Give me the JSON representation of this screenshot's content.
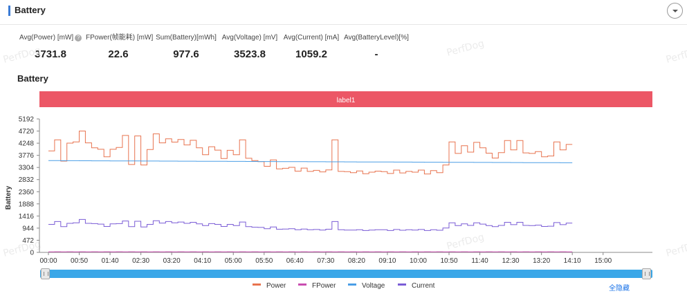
{
  "header": {
    "title": "Battery"
  },
  "stats": [
    {
      "label": "Avg(Power) [mW]",
      "value": "3731.8",
      "has_help": true
    },
    {
      "label": "FPower(帧能耗) [mW]",
      "value": "22.6"
    },
    {
      "label": "Sum(Battery)[mWh]",
      "value": "977.6"
    },
    {
      "label": "Avg(Voltage) [mV]",
      "value": "3523.8"
    },
    {
      "label": "Avg(Current) [mA]",
      "value": "1059.2"
    },
    {
      "label": "Avg(BatteryLevel)[%]",
      "value": "-"
    }
  ],
  "watermark": "PerfDog",
  "chart_section_title": "Battery",
  "hide_all_label": "全隐藏",
  "chart_data": {
    "type": "line",
    "title": "Battery",
    "ylabel": "Battery",
    "label_band": "label1",
    "ylim": [
      0,
      5192
    ],
    "yticks": [
      0,
      472,
      944,
      1416,
      1888,
      2360,
      2832,
      3304,
      3776,
      4248,
      4720,
      5192
    ],
    "xticks": [
      "00:00",
      "00:50",
      "01:40",
      "02:30",
      "03:20",
      "04:10",
      "05:00",
      "05:50",
      "06:40",
      "07:30",
      "08:20",
      "09:10",
      "10:00",
      "10:50",
      "11:40",
      "12:30",
      "13:20",
      "14:10",
      "15:00"
    ],
    "x_range_seconds": [
      0,
      980
    ],
    "step_seconds": 10,
    "colors": {
      "Power": "#e8734f",
      "FPower": "#c94db0",
      "Voltage": "#4a9ee6",
      "Current": "#7a5cd6",
      "label_band": "#ec5766"
    },
    "series": [
      {
        "name": "Power",
        "values": [
          3950,
          4380,
          3550,
          4250,
          4300,
          4720,
          4260,
          4070,
          4010,
          3720,
          4010,
          4080,
          4550,
          3420,
          4530,
          3400,
          4000,
          4610,
          4260,
          4420,
          4290,
          4390,
          4180,
          4360,
          4070,
          3800,
          4110,
          3980,
          3650,
          3970,
          3800,
          4380,
          3660,
          3570,
          3530,
          3350,
          3600,
          3250,
          3270,
          3310,
          3160,
          3280,
          3150,
          3190,
          3130,
          3210,
          4380,
          3150,
          3140,
          3100,
          3170,
          3060,
          3120,
          3160,
          3140,
          3070,
          3200,
          3090,
          3150,
          3120,
          3200,
          3050,
          3180,
          3100,
          3400,
          4300,
          3850,
          4150,
          3900,
          4280,
          4070,
          3860,
          3670,
          3880,
          4350,
          3990,
          4350,
          3870,
          3850,
          3920,
          3720,
          3750,
          4300,
          3990,
          4200
        ]
      },
      {
        "name": "FPower",
        "values": [
          22,
          23,
          22,
          23,
          22,
          23,
          22,
          23,
          22,
          23,
          22,
          23,
          22,
          23,
          22,
          23,
          22,
          23,
          22,
          23,
          22,
          23,
          22,
          23,
          22,
          23,
          22,
          23,
          22,
          23,
          22,
          23,
          22,
          23,
          22,
          23,
          22,
          23,
          22,
          23,
          22,
          23,
          22,
          23,
          22,
          23,
          22,
          23,
          22,
          23,
          22,
          23,
          22,
          23,
          22,
          23,
          22,
          23,
          22,
          23,
          22,
          23,
          22,
          23,
          22,
          23,
          22,
          23,
          22,
          23,
          22,
          23,
          22,
          23,
          22,
          23,
          22,
          23,
          22,
          23,
          22,
          23,
          22,
          23,
          22
        ]
      },
      {
        "name": "Voltage",
        "values": [
          3570,
          3569,
          3568,
          3567,
          3566,
          3565,
          3564,
          3563,
          3562,
          3561,
          3560,
          3559,
          3558,
          3557,
          3556,
          3555,
          3554,
          3553,
          3552,
          3551,
          3550,
          3549,
          3548,
          3547,
          3546,
          3545,
          3544,
          3543,
          3542,
          3541,
          3540,
          3539,
          3538,
          3537,
          3536,
          3535,
          3534,
          3533,
          3532,
          3531,
          3530,
          3529,
          3528,
          3527,
          3526,
          3525,
          3524,
          3523,
          3522,
          3521,
          3520,
          3519,
          3518,
          3517,
          3516,
          3515,
          3514,
          3513,
          3512,
          3511,
          3510,
          3509,
          3508,
          3507,
          3506,
          3505,
          3504,
          3503,
          3502,
          3501,
          3500,
          3499,
          3498,
          3497,
          3496,
          3495,
          3494,
          3493,
          3492,
          3491,
          3490,
          3489,
          3488,
          3487,
          3486
        ]
      },
      {
        "name": "Current",
        "values": [
          1090,
          1200,
          1000,
          1130,
          1150,
          1280,
          1130,
          1120,
          1100,
          1010,
          1110,
          1120,
          1220,
          1000,
          1210,
          990,
          1090,
          1230,
          1140,
          1200,
          1150,
          1180,
          1130,
          1170,
          1110,
          1040,
          1120,
          1090,
          1010,
          1090,
          1040,
          1180,
          1000,
          980,
          970,
          920,
          990,
          900,
          910,
          920,
          880,
          910,
          880,
          890,
          870,
          900,
          1200,
          880,
          870,
          870,
          880,
          850,
          870,
          880,
          880,
          850,
          890,
          860,
          880,
          870,
          890,
          850,
          880,
          860,
          950,
          1150,
          1040,
          1110,
          1050,
          1150,
          1100,
          1040,
          1000,
          1050,
          1170,
          1080,
          1170,
          1050,
          1040,
          1060,
          1010,
          1020,
          1160,
          1080,
          1140
        ]
      }
    ],
    "legend": [
      "Power",
      "FPower",
      "Voltage",
      "Current"
    ],
    "legend_position": "bottom-center",
    "grid": false
  }
}
